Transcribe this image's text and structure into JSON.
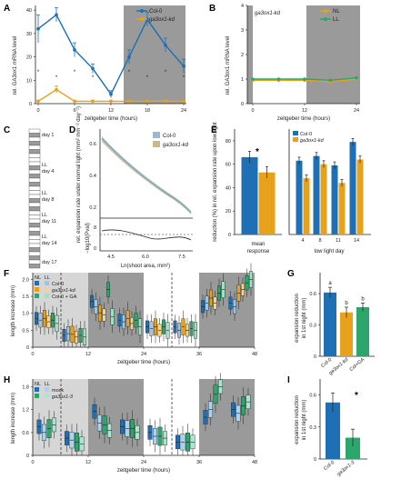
{
  "colors": {
    "col0": "#1f6fb4",
    "kd": "#e7a11a",
    "ga": "#2ca66b",
    "ll": "#2ca66b",
    "night": "#9a9a9a",
    "ll_bg": "#d6d6d6",
    "col0_light": "#9cc6e8",
    "kd_light": "#f5d48a",
    "ga_light": "#9fe2c3",
    "mock_light": "#a7d4f2",
    "ga3_light": "#a8e6cf"
  },
  "panels": {
    "A": {
      "label": "A",
      "ylabel": "rel. GA3ox1 mRNA level",
      "xlabel": "zeitgeber time (hours)",
      "legend": [
        "Col-0",
        "ga3ox1-kd"
      ],
      "chart_data": {
        "type": "line",
        "x": [
          0,
          3,
          6,
          9,
          12,
          15,
          18,
          21,
          24
        ],
        "xticks": [
          "0",
          "6",
          "12",
          "18",
          "24"
        ],
        "yticks": [
          "0",
          "10",
          "20",
          "30",
          "40"
        ],
        "ylim": [
          0,
          42
        ],
        "series": [
          {
            "name": "Col-0",
            "values": [
              32,
              38,
              23,
              15,
              4,
              20,
              36,
              25,
              16
            ],
            "err": [
              6,
              3,
              3,
              2,
              1.5,
              3,
              3,
              3,
              3
            ]
          },
          {
            "name": "ga3ox1-kd",
            "values": [
              1,
              6,
              1,
              1,
              1,
              1,
              1,
              1,
              1
            ],
            "err": [
              0.5,
              1.5,
              0.5,
              0.5,
              0.5,
              0.5,
              0.5,
              0.5,
              0.5
            ]
          }
        ],
        "stars": [
          "*",
          "*",
          "*",
          "*",
          "*",
          "*",
          "*",
          "*"
        ]
      }
    },
    "B": {
      "label": "B",
      "title": "ga3ox1-kd",
      "ylabel": "rel. GA3ox1 mRNA level",
      "xlabel": "zeitgeber time (hours)",
      "legend": [
        "NL",
        "LL"
      ],
      "chart_data": {
        "type": "line",
        "x": [
          0,
          6,
          12,
          18,
          24
        ],
        "xticks": [
          "0",
          "12",
          "24"
        ],
        "yticks": [
          "0",
          "1",
          "2",
          "3",
          "4"
        ],
        "ylim": [
          0,
          4
        ],
        "series": [
          {
            "name": "NL",
            "values": [
              0.95,
              0.95,
              0.95,
              0.9,
              1.0
            ]
          },
          {
            "name": "LL",
            "values": [
              1.0,
              1.0,
              1.0,
              0.95,
              1.05
            ]
          }
        ]
      }
    },
    "C": {
      "label": "C",
      "day_labels": [
        "day 1",
        "LL\nday 4",
        "LL\nday 8",
        "LL\nday 11",
        "LL\nday 14",
        "day 17"
      ]
    },
    "D": {
      "label": "D",
      "ylabel": "rel. expansion rate under normal light (mm² mm⁻² day⁻¹)",
      "ylabel2": "−log10(Pval)",
      "xlabel": "Ln(shoot area, mm²)",
      "legend": [
        "Col-0",
        "ga3ox1-kd"
      ],
      "xticks": [
        "4.5",
        "6.0",
        "7.5"
      ],
      "yticks_top": [
        "0.2",
        "0.4",
        "0.6"
      ],
      "yticks_bottom": [
        "0",
        "8"
      ]
    },
    "E": {
      "label": "E",
      "ylabel": "reduction (%) in rel. expansion rate upon low light",
      "legend": [
        "Col-0",
        "ga3ox1-kd"
      ],
      "star": "*",
      "chart_data": {
        "type": "bar",
        "categories": [
          "mean response",
          "4",
          "8",
          "11",
          "14"
        ],
        "xlabel": "low light day",
        "yticks": [
          "0",
          "20",
          "40",
          "60",
          "80"
        ],
        "ylim": [
          0,
          90
        ],
        "series": [
          {
            "name": "Col-0",
            "values": [
              66,
              63,
              67,
              59,
              79
            ],
            "err": [
              5,
              3,
              3,
              3,
              3
            ]
          },
          {
            "name": "ga3ox1-kd",
            "values": [
              53,
              48,
              60,
              44,
              64
            ],
            "err": [
              5,
              3,
              3,
              3,
              3
            ]
          }
        ]
      }
    },
    "F": {
      "label": "F",
      "ylabel": "length increase (mm)",
      "xlabel": "zeitgeber time (hours)",
      "legend_nl": "NL",
      "legend_ll": "LL",
      "legend": [
        "Col-0",
        "ga3ox1-kd",
        "Col-0 + GA"
      ],
      "xticks": [
        "0",
        "12",
        "24",
        "36",
        "48"
      ],
      "yticks": [
        "0",
        "0.5",
        "1.0",
        "1.5",
        "2.0"
      ],
      "chart_data": {
        "type": "bar",
        "ylim": [
          0,
          2.2
        ],
        "groups": [
          {
            "t": 3,
            "values": [
              0.85,
              0.8,
              0.85,
              0.75,
              0.8,
              0.7
            ]
          },
          {
            "t": 9,
            "values": [
              0.35,
              0.4,
              0.38,
              0.3,
              0.35,
              0.3
            ]
          },
          {
            "t": 15,
            "values": [
              1.35,
              1.2,
              1.0,
              0.95,
              1.7,
              0.9
            ]
          },
          {
            "t": 21,
            "values": [
              0.8,
              0.75,
              0.85,
              0.7,
              0.8,
              0.6
            ]
          },
          {
            "t": 27,
            "values": [
              0.6,
              0.55,
              0.6,
              0.5,
              0.6,
              0.5
            ]
          },
          {
            "t": 33,
            "values": [
              0.6,
              0.5,
              0.6,
              0.5,
              0.55,
              0.5
            ]
          },
          {
            "t": 39,
            "values": [
              1.2,
              1.3,
              1.45,
              1.3,
              1.6,
              1.7
            ]
          },
          {
            "t": 45,
            "values": [
              1.3,
              1.2,
              1.6,
              1.7,
              1.9,
              2.0
            ]
          }
        ]
      }
    },
    "G": {
      "label": "G",
      "ylabel": "expansion reduction in 1st night (mm)",
      "chart_data": {
        "type": "bar",
        "categories": [
          "Col-0",
          "ga3ox1-kd",
          "Col+GA"
        ],
        "values": [
          0.61,
          0.42,
          0.47
        ],
        "err": [
          0.05,
          0.05,
          0.04
        ],
        "letters": [
          "a",
          "b",
          "b"
        ],
        "yticks": [
          "0",
          "0.3",
          "0.6"
        ],
        "ylim": [
          0,
          0.8
        ]
      }
    },
    "H": {
      "label": "H",
      "ylabel": "length increase (mm)",
      "xlabel": "zeitgeber time (hours)",
      "legend_nl": "NL",
      "legend_ll": "LL",
      "legend": [
        "mock",
        "ga3ox1-3"
      ],
      "xticks": [
        "0",
        "12",
        "24",
        "36",
        "48"
      ],
      "yticks": [
        "0",
        "0.6",
        "1.2",
        "1.8"
      ],
      "chart_data": {
        "type": "bar",
        "ylim": [
          0,
          2.0
        ],
        "groups": [
          {
            "t": 3,
            "values": [
              0.75,
              0.6,
              0.7,
              0.8
            ]
          },
          {
            "t": 9,
            "values": [
              0.45,
              0.4,
              0.35,
              0.3
            ]
          },
          {
            "t": 15,
            "values": [
              1.15,
              0.85,
              0.8,
              0.65
            ]
          },
          {
            "t": 21,
            "values": [
              0.75,
              0.7,
              0.7,
              0.6
            ]
          },
          {
            "t": 27,
            "values": [
              0.6,
              0.5,
              0.5,
              0.45
            ]
          },
          {
            "t": 33,
            "values": [
              0.35,
              0.35,
              0.35,
              0.35
            ]
          },
          {
            "t": 39,
            "values": [
              1.0,
              1.2,
              1.6,
              1.8
            ]
          },
          {
            "t": 45,
            "values": [
              1.2,
              1.1,
              1.3,
              1.4
            ]
          }
        ]
      }
    },
    "I": {
      "label": "I",
      "ylabel": "expansion reduction in 1st night (mm)",
      "star": "*",
      "chart_data": {
        "type": "bar",
        "categories": [
          "Col-0",
          "ga3ox1-3"
        ],
        "values": [
          0.53,
          0.2
        ],
        "err": [
          0.09,
          0.08
        ],
        "yticks": [
          "0",
          "0.3",
          "0.6"
        ],
        "ylim": [
          0,
          0.75
        ]
      }
    }
  }
}
